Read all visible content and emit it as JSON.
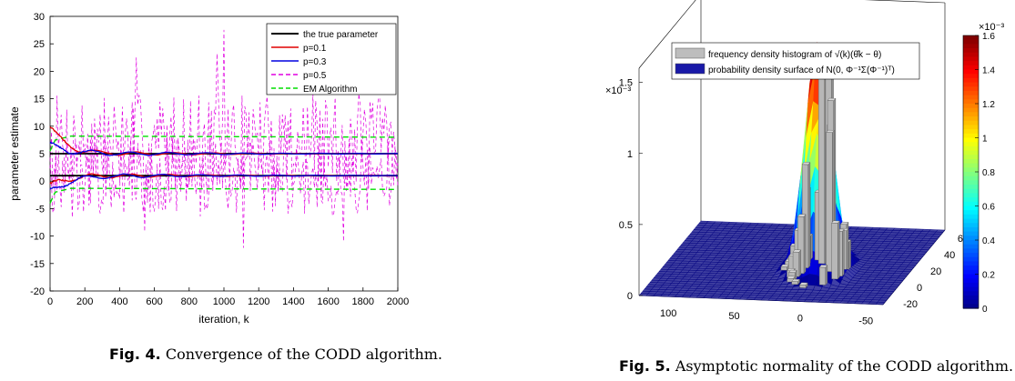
{
  "figures": [
    {
      "caption_label": "Fig. 4.",
      "caption_text": "Convergence of the CODD algorithm."
    },
    {
      "caption_label": "Fig. 5.",
      "caption_text": "Asymptotic normality of the CODD algorithm."
    }
  ],
  "chart_data": [
    {
      "type": "line",
      "xlabel": "iteration, k",
      "ylabel": "parameter estimate",
      "xlim": [
        0,
        2000
      ],
      "ylim": [
        -20,
        30
      ],
      "xticks": [
        0,
        200,
        400,
        600,
        800,
        1000,
        1200,
        1400,
        1600,
        1800,
        2000
      ],
      "yticks": [
        -20,
        -15,
        -10,
        -5,
        0,
        5,
        10,
        15,
        20,
        25,
        30
      ],
      "legend_position": "top-right",
      "grid": false,
      "series": [
        {
          "name": "the true parameter",
          "color": "#000000",
          "style": "solid",
          "true_values": [
            5,
            1
          ]
        },
        {
          "name": "p=0.1",
          "color": "#e00000",
          "style": "solid",
          "start_values": [
            10,
            -1
          ],
          "converges_to": [
            5,
            1
          ]
        },
        {
          "name": "p=0.3",
          "color": "#0000e0",
          "style": "solid",
          "start_values": [
            6.5,
            -2
          ],
          "converges_to": [
            5,
            1
          ]
        },
        {
          "name": "p=0.5",
          "color": "#e000e0",
          "style": "dashed",
          "range": [
            -15,
            28
          ],
          "peak": {
            "x": 1000,
            "y": 27.5
          }
        },
        {
          "name": "EM Algorithm",
          "color": "#00dd00",
          "style": "dashed",
          "bounds": [
            8,
            -1.5
          ]
        }
      ]
    },
    {
      "type": "surface3d",
      "legend": [
        {
          "label": "frequency density histogram of √(k)(θ̂k − θ)",
          "swatch": "#bdbdbd"
        },
        {
          "label": "probability density surface of N(0, Φ⁻¹Σ(Φ⁻¹)ᵀ)",
          "swatch": "#1a1aa8"
        }
      ],
      "z_multiplier": "×10⁻³",
      "zticks": [
        "0",
        "0.5",
        "1",
        "1.5"
      ],
      "zlim": [
        0,
        0.0016
      ],
      "x_ticks": [
        "100",
        "50",
        "0",
        "-50"
      ],
      "y_ticks": [
        "-20",
        "0",
        "20",
        "40",
        "60"
      ],
      "colorbar": {
        "multiplier": "×10⁻³",
        "ticks": [
          "0",
          "0.2",
          "0.4",
          "0.6",
          "0.8",
          "1",
          "1.2",
          "1.4",
          "1.6"
        ],
        "range": [
          0,
          1.6
        ],
        "colormap": "jet"
      },
      "peak_density": 0.0016
    }
  ]
}
